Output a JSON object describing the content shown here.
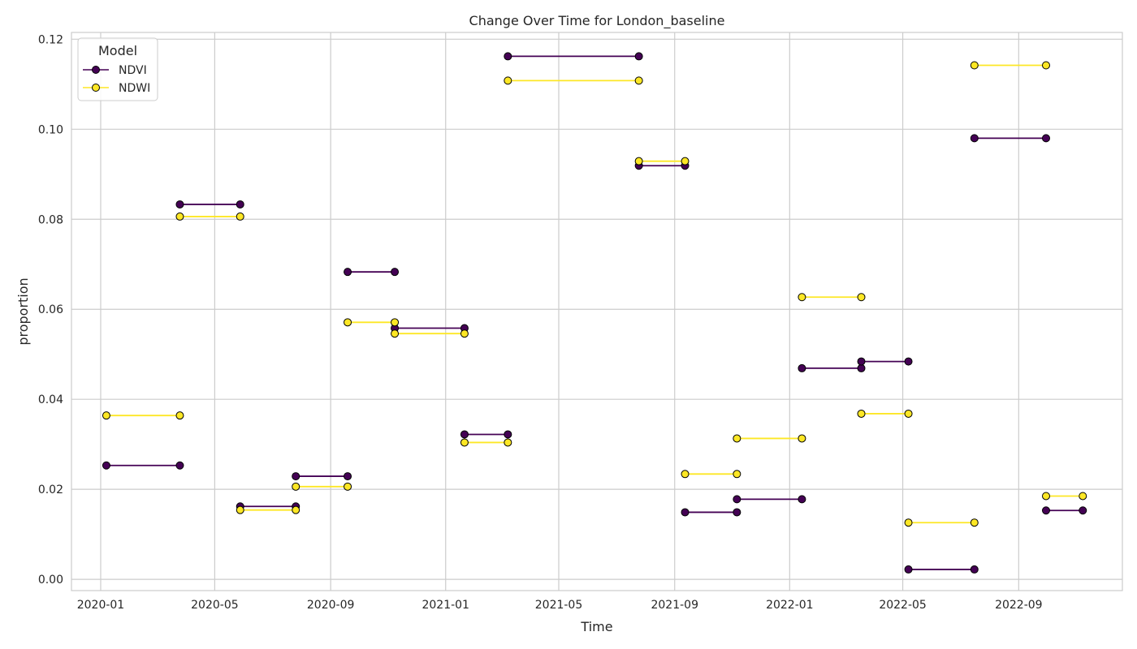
{
  "chart_data": {
    "type": "line",
    "title": "Change Over Time for London_baseline",
    "xlabel": "Time",
    "ylabel": "proportion",
    "x_range": [
      "2019-12-01",
      "2022-12-20"
    ],
    "ylim": [
      -0.0025,
      0.1215
    ],
    "x_tick_dates": [
      "2020-01-01",
      "2020-05-01",
      "2020-09-01",
      "2021-01-01",
      "2021-05-01",
      "2021-09-01",
      "2022-01-01",
      "2022-05-01",
      "2022-09-01"
    ],
    "x_tick_labels": [
      "2020-01",
      "2020-05",
      "2020-09",
      "2021-01",
      "2021-05",
      "2021-09",
      "2022-01",
      "2022-05",
      "2022-09"
    ],
    "y_ticks": [
      0.0,
      0.02,
      0.04,
      0.06,
      0.08,
      0.1,
      0.12
    ],
    "y_tick_labels": [
      "0.00",
      "0.02",
      "0.04",
      "0.06",
      "0.08",
      "0.10",
      "0.12"
    ],
    "grid": true,
    "legend": {
      "title": "Model",
      "placement": "top-left"
    },
    "series": [
      {
        "name": "NDVI",
        "color": "#440154",
        "segments": [
          {
            "x": [
              "2020-01-07",
              "2020-03-25"
            ],
            "y": 0.0253
          },
          {
            "x": [
              "2020-03-25",
              "2020-05-28"
            ],
            "y": 0.0833
          },
          {
            "x": [
              "2020-05-28",
              "2020-07-26"
            ],
            "y": 0.0162
          },
          {
            "x": [
              "2020-07-26",
              "2020-09-19"
            ],
            "y": 0.0229
          },
          {
            "x": [
              "2020-09-19",
              "2020-11-08"
            ],
            "y": 0.0683
          },
          {
            "x": [
              "2020-11-08",
              "2021-01-21"
            ],
            "y": 0.0558
          },
          {
            "x": [
              "2021-01-21",
              "2021-03-08"
            ],
            "y": 0.0322
          },
          {
            "x": [
              "2021-03-08",
              "2021-07-25"
            ],
            "y": 0.1162
          },
          {
            "x": [
              "2021-07-25",
              "2021-09-12"
            ],
            "y": 0.0919
          },
          {
            "x": [
              "2021-09-12",
              "2021-11-06"
            ],
            "y": 0.0149
          },
          {
            "x": [
              "2021-11-06",
              "2022-01-14"
            ],
            "y": 0.0178
          },
          {
            "x": [
              "2022-01-14",
              "2022-03-18"
            ],
            "y": 0.0469
          },
          {
            "x": [
              "2022-03-18",
              "2022-05-07"
            ],
            "y": 0.0484
          },
          {
            "x": [
              "2022-05-07",
              "2022-07-16"
            ],
            "y": 0.0022
          },
          {
            "x": [
              "2022-07-16",
              "2022-09-30"
            ],
            "y": 0.098
          },
          {
            "x": [
              "2022-09-30",
              "2022-11-08"
            ],
            "y": 0.0153
          }
        ]
      },
      {
        "name": "NDWI",
        "color": "#fde725",
        "segments": [
          {
            "x": [
              "2020-01-07",
              "2020-03-25"
            ],
            "y": 0.0364
          },
          {
            "x": [
              "2020-03-25",
              "2020-05-28"
            ],
            "y": 0.0806
          },
          {
            "x": [
              "2020-05-28",
              "2020-07-26"
            ],
            "y": 0.0154
          },
          {
            "x": [
              "2020-07-26",
              "2020-09-19"
            ],
            "y": 0.0206
          },
          {
            "x": [
              "2020-09-19",
              "2020-11-08"
            ],
            "y": 0.0571
          },
          {
            "x": [
              "2020-11-08",
              "2021-01-21"
            ],
            "y": 0.0546
          },
          {
            "x": [
              "2021-01-21",
              "2021-03-08"
            ],
            "y": 0.0304
          },
          {
            "x": [
              "2021-03-08",
              "2021-07-25"
            ],
            "y": 0.1108
          },
          {
            "x": [
              "2021-07-25",
              "2021-09-12"
            ],
            "y": 0.0929
          },
          {
            "x": [
              "2021-09-12",
              "2021-11-06"
            ],
            "y": 0.0234
          },
          {
            "x": [
              "2021-11-06",
              "2022-01-14"
            ],
            "y": 0.0313
          },
          {
            "x": [
              "2022-01-14",
              "2022-03-18"
            ],
            "y": 0.0627
          },
          {
            "x": [
              "2022-03-18",
              "2022-05-07"
            ],
            "y": 0.0368
          },
          {
            "x": [
              "2022-05-07",
              "2022-07-16"
            ],
            "y": 0.0126
          },
          {
            "x": [
              "2022-07-16",
              "2022-09-30"
            ],
            "y": 0.1142
          },
          {
            "x": [
              "2022-09-30",
              "2022-11-08"
            ],
            "y": 0.0185
          }
        ]
      }
    ]
  }
}
